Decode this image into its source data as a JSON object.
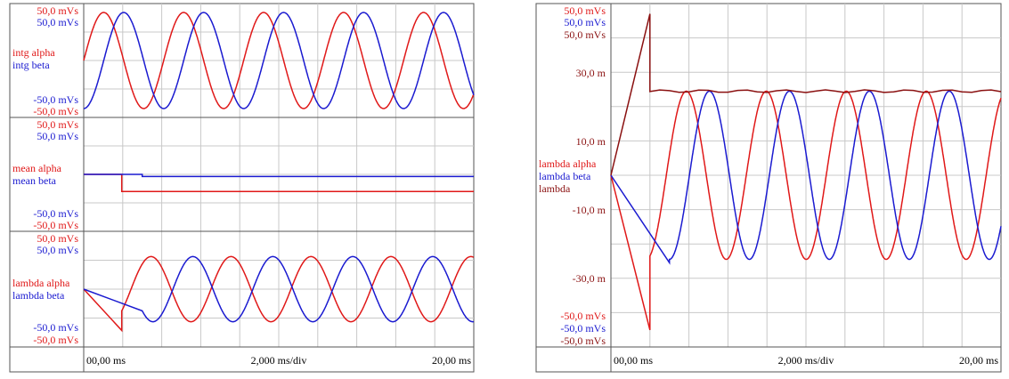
{
  "colors": {
    "red": "#e01818",
    "blue": "#1a1ad0",
    "maroon": "#8a1010",
    "grid": "#c8c8c8",
    "frame": "#555555"
  },
  "left_scope": {
    "x_axis": {
      "start_label": "00,00 ms",
      "div_label": "2,000 ms/div",
      "end_label": "20,00 ms"
    }
  },
  "right_scope": {
    "x_axis": {
      "start_label": "00,00 ms",
      "div_label": "2,000 ms/div",
      "end_label": "20,00 ms"
    }
  },
  "chart_data": [
    {
      "type": "line",
      "x_unit": "ms",
      "xlim": [
        0,
        20
      ],
      "ylim": [
        -50,
        50
      ],
      "scale_labels": {
        "top": [
          "50,0 mVs",
          "50,0 mVs"
        ],
        "bottom": [
          "-50,0 mVs",
          "-50,0 mVs"
        ]
      },
      "series": [
        {
          "name": "intg alpha",
          "color": "red",
          "kind": "sine",
          "amplitude": 45,
          "period_ms": 4.1,
          "phase_deg": 0
        },
        {
          "name": "intg beta",
          "color": "blue",
          "kind": "sine",
          "amplitude": 45,
          "period_ms": 4.1,
          "phase_deg": 90
        }
      ]
    },
    {
      "type": "line",
      "x_unit": "ms",
      "xlim": [
        0,
        20
      ],
      "ylim": [
        -50,
        50
      ],
      "scale_labels": {
        "top": [
          "50,0 mVs",
          "50,0 mVs"
        ],
        "bottom": [
          "-50,0 mVs",
          "-50,0 mVs"
        ]
      },
      "series": [
        {
          "name": "mean alpha",
          "color": "red",
          "kind": "step",
          "points": [
            [
              0,
              0
            ],
            [
              1.95,
              0
            ],
            [
              1.95,
              -16
            ],
            [
              20,
              -16
            ]
          ]
        },
        {
          "name": "mean beta",
          "color": "blue",
          "kind": "step",
          "points": [
            [
              0,
              0
            ],
            [
              3.0,
              0
            ],
            [
              3.0,
              -2
            ],
            [
              20,
              -2
            ]
          ]
        }
      ]
    },
    {
      "type": "line",
      "x_unit": "ms",
      "xlim": [
        0,
        20
      ],
      "ylim": [
        -50,
        50
      ],
      "scale_labels": {
        "top": [
          "50,0 mVs",
          "50,0 mVs"
        ],
        "bottom": [
          "-50,0 mVs",
          "-50,0 mVs"
        ]
      },
      "series": [
        {
          "name": "lambda alpha",
          "color": "red",
          "kind": "sine_after_transient",
          "amplitude": 30,
          "period_ms": 4.1,
          "phase_deg": 0,
          "transient": [
            [
              0,
              0
            ],
            [
              1.95,
              -38
            ],
            [
              1.95,
              -20
            ]
          ]
        },
        {
          "name": "lambda beta",
          "color": "blue",
          "kind": "sine_after_transient",
          "amplitude": 30,
          "period_ms": 4.1,
          "phase_deg": 90,
          "transient": [
            [
              0,
              0
            ],
            [
              3.0,
              -20
            ]
          ]
        }
      ]
    },
    {
      "type": "line",
      "x_unit": "ms",
      "xlim": [
        0,
        20
      ],
      "ylim": [
        -50,
        50
      ],
      "scale_labels": {
        "top": [
          "50,0 mVs",
          "50,0 mVs",
          "50,0 mVs"
        ],
        "ticks": [
          "30,0 m",
          "10,0 m",
          "-10,0 m",
          "-30,0 m"
        ],
        "bottom": [
          "-50,0 mVs",
          "-50,0 mVs",
          "-50,0 mVs"
        ]
      },
      "series": [
        {
          "name": "lambda alpha",
          "color": "red",
          "kind": "sine_after_transient",
          "amplitude": 25,
          "period_ms": 4.1,
          "phase_deg": 0,
          "transient": [
            [
              0,
              0
            ],
            [
              2.0,
              -46
            ],
            [
              2.0,
              -24
            ]
          ]
        },
        {
          "name": "lambda beta",
          "color": "blue",
          "kind": "sine_after_transient",
          "amplitude": 25,
          "period_ms": 4.1,
          "phase_deg": 90,
          "transient": [
            [
              0,
              0
            ],
            [
              3.0,
              -26
            ]
          ]
        },
        {
          "name": "lambda",
          "color": "maroon",
          "kind": "level_after_transient",
          "level": 25,
          "transient": [
            [
              0,
              0
            ],
            [
              2.0,
              48
            ],
            [
              2.0,
              25
            ]
          ]
        }
      ]
    }
  ]
}
